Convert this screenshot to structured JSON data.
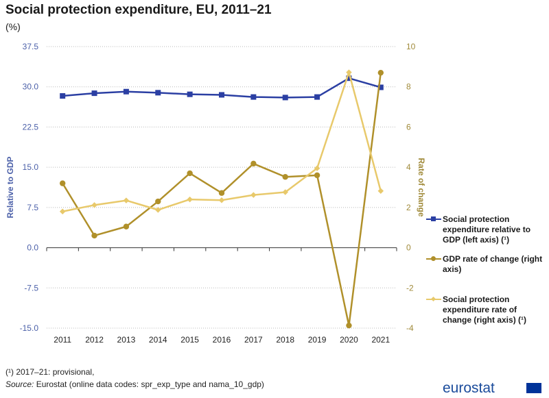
{
  "title": "Social protection expenditure, EU, 2011–21",
  "subtitle": "(%)",
  "footnote1": "(¹) 2017–21: provisional,",
  "footnote2_prefix": "Source:",
  "footnote2_text": " Eurostat (online data codes: spr_exp_type and nama_10_gdp)",
  "logo_text": "eurostat",
  "legend": [
    {
      "label": "Social protection expenditure relative to GDP (left axis) (¹)"
    },
    {
      "label": "GDP rate of change (right axis)"
    },
    {
      "label": "Social protection expenditure rate of change (right axis) (¹)"
    }
  ],
  "colors": {
    "blue": "#2b3fa3",
    "gold": "#b0902a",
    "light": "#e8c96b",
    "leftAxis": "#4a5fa8",
    "rightAxis": "#a08a3a"
  },
  "chart_data": {
    "type": "line",
    "title": "Social protection expenditure, EU, 2011–21",
    "ylabel": "Relative to GDP",
    "y2label": "Rate of change",
    "categories": [
      "2011",
      "2012",
      "2013",
      "2014",
      "2015",
      "2016",
      "2017",
      "2018",
      "2019",
      "2020",
      "2021"
    ],
    "ylim": [
      -15,
      37.5
    ],
    "y2lim": [
      -4,
      10
    ],
    "yticks": [
      "37.5",
      "30.0",
      "22.5",
      "15.0",
      "7.5",
      "0.0",
      "-7.5",
      "-15.0"
    ],
    "y2ticks": [
      "10",
      "8",
      "6",
      "4",
      "2",
      "0",
      "-2",
      "-4"
    ],
    "series": [
      {
        "name": "Social protection expenditure relative to GDP (left axis) (¹)",
        "axis": "left",
        "marker": "square",
        "values": [
          28.3,
          28.8,
          29.1,
          28.9,
          28.6,
          28.5,
          28.1,
          28.0,
          28.1,
          31.6,
          29.9
        ]
      },
      {
        "name": "GDP rate of change (right axis)",
        "axis": "right",
        "marker": "circle",
        "values": [
          3.2,
          0.6,
          1.05,
          2.3,
          3.7,
          2.72,
          4.18,
          3.52,
          3.6,
          -3.87,
          8.7
        ]
      },
      {
        "name": "Social protection expenditure rate of change (right axis) (¹)",
        "axis": "right",
        "marker": "diamond",
        "values": [
          1.8,
          2.12,
          2.35,
          1.88,
          2.4,
          2.36,
          2.62,
          2.76,
          3.95,
          8.72,
          2.82
        ]
      }
    ]
  }
}
